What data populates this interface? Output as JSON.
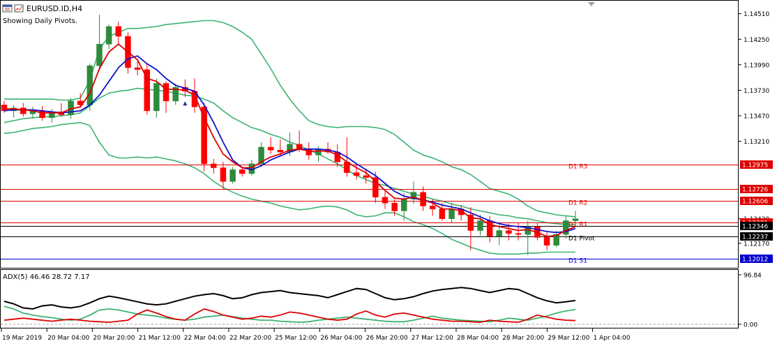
{
  "header": {
    "symbol": "EURUSD.ID,H4",
    "subtitle": "Showing Daily Pivots."
  },
  "colors": {
    "bullish": "#2e8b3c",
    "bearish": "#ff0000",
    "bollinger": "#3cb371",
    "ma_fast": "#dd0000",
    "ma_slow": "#1010cc",
    "pivot_red": "#dd0000",
    "pivot_black": "#000000",
    "pivot_blue": "#0000cc",
    "adx_main": "#000000",
    "adx_plus": "#3cb371",
    "adx_minus": "#dd0000",
    "grid_border": "#000000"
  },
  "chart_data": [
    {
      "type": "candlestick",
      "title": "EURUSD.ID,H4",
      "ylim": [
        1.1192,
        1.1465
      ],
      "price_ticks": [
        "1.14510",
        "1.14250",
        "1.13990",
        "1.13730",
        "1.13470",
        "1.13210",
        "1.12420",
        "1.12170"
      ],
      "x_ticks": [
        "19 Mar 2019",
        "20 Mar 04:00",
        "20 Mar 20:00",
        "21 Mar 12:00",
        "22 Mar 04:00",
        "22 Mar 20:00",
        "25 Mar 12:00",
        "26 Mar 04:00",
        "26 Mar 20:00",
        "27 Mar 12:00",
        "28 Mar 04:00",
        "28 Mar 20:00",
        "29 Mar 12:00",
        "1 Apr 04:00"
      ],
      "candles": [
        [
          1.1358,
          1.1362,
          1.135,
          1.1352
        ],
        [
          1.1352,
          1.1358,
          1.1345,
          1.1355
        ],
        [
          1.1355,
          1.136,
          1.1346,
          1.1349
        ],
        [
          1.1349,
          1.1356,
          1.1344,
          1.1352
        ],
        [
          1.1352,
          1.1357,
          1.1342,
          1.1345
        ],
        [
          1.1345,
          1.1354,
          1.134,
          1.1351
        ],
        [
          1.1351,
          1.136,
          1.1346,
          1.1348
        ],
        [
          1.1348,
          1.1365,
          1.1344,
          1.1362
        ],
        [
          1.1362,
          1.137,
          1.1355,
          1.1358
        ],
        [
          1.1358,
          1.14,
          1.1352,
          1.1398
        ],
        [
          1.1398,
          1.145,
          1.1393,
          1.142
        ],
        [
          1.142,
          1.144,
          1.1415,
          1.1438
        ],
        [
          1.1438,
          1.1443,
          1.142,
          1.1428
        ],
        [
          1.1428,
          1.1432,
          1.139,
          1.1396
        ],
        [
          1.1396,
          1.1405,
          1.1388,
          1.1394
        ],
        [
          1.1394,
          1.14,
          1.1348,
          1.1352
        ],
        [
          1.1352,
          1.1385,
          1.1345,
          1.138
        ],
        [
          1.138,
          1.1382,
          1.135,
          1.1362
        ],
        [
          1.1362,
          1.138,
          1.1358,
          1.1376
        ],
        [
          1.1376,
          1.1384,
          1.1366,
          1.1372
        ],
        [
          1.1372,
          1.1385,
          1.135,
          1.1356
        ],
        [
          1.1356,
          1.136,
          1.129,
          1.1298
        ],
        [
          1.1298,
          1.1303,
          1.1288,
          1.1294
        ],
        [
          1.1294,
          1.13,
          1.1272,
          1.128
        ],
        [
          1.128,
          1.1295,
          1.1278,
          1.1292
        ],
        [
          1.1292,
          1.1295,
          1.1285,
          1.1288
        ],
        [
          1.1288,
          1.1302,
          1.1286,
          1.1298
        ],
        [
          1.1298,
          1.132,
          1.1295,
          1.1315
        ],
        [
          1.1315,
          1.1325,
          1.1308,
          1.1312
        ],
        [
          1.1312,
          1.1323,
          1.1305,
          1.131
        ],
        [
          1.131,
          1.133,
          1.1306,
          1.1318
        ],
        [
          1.1318,
          1.1332,
          1.131,
          1.1313
        ],
        [
          1.1313,
          1.132,
          1.1302,
          1.1307
        ],
        [
          1.1307,
          1.1316,
          1.13,
          1.1313
        ],
        [
          1.1313,
          1.132,
          1.1308,
          1.131
        ],
        [
          1.131,
          1.1318,
          1.1295,
          1.13
        ],
        [
          1.13,
          1.1325,
          1.1285,
          1.1289
        ],
        [
          1.1289,
          1.1298,
          1.1282,
          1.1286
        ],
        [
          1.1286,
          1.1293,
          1.1278,
          1.1284
        ],
        [
          1.1284,
          1.129,
          1.1258,
          1.1264
        ],
        [
          1.1264,
          1.127,
          1.1252,
          1.1258
        ],
        [
          1.1258,
          1.1262,
          1.1245,
          1.125
        ],
        [
          1.125,
          1.1268,
          1.124,
          1.1262
        ],
        [
          1.1262,
          1.128,
          1.1257,
          1.1269
        ],
        [
          1.1269,
          1.1275,
          1.125,
          1.1255
        ],
        [
          1.1255,
          1.1262,
          1.1245,
          1.1252
        ],
        [
          1.1252,
          1.1258,
          1.124,
          1.1242
        ],
        [
          1.1242,
          1.1258,
          1.1238,
          1.1252
        ],
        [
          1.1252,
          1.1256,
          1.124,
          1.1246
        ],
        [
          1.1246,
          1.1254,
          1.121,
          1.123
        ],
        [
          1.123,
          1.1246,
          1.1225,
          1.124
        ],
        [
          1.124,
          1.1245,
          1.1218,
          1.1224
        ],
        [
          1.1224,
          1.1236,
          1.1215,
          1.123
        ],
        [
          1.123,
          1.1237,
          1.122,
          1.1227
        ],
        [
          1.1227,
          1.1238,
          1.122,
          1.1226
        ],
        [
          1.1226,
          1.124,
          1.1205,
          1.1234
        ],
        [
          1.1234,
          1.1238,
          1.122,
          1.1223
        ],
        [
          1.1223,
          1.1228,
          1.121,
          1.1215
        ],
        [
          1.1215,
          1.123,
          1.1213,
          1.1226
        ],
        [
          1.1226,
          1.1245,
          1.1222,
          1.124
        ],
        [
          1.124,
          1.125,
          1.1236,
          1.1242
        ]
      ],
      "ma_fast": [
        1.1354,
        1.1354,
        1.1353,
        1.1352,
        1.135,
        1.135,
        1.135,
        1.1354,
        1.1356,
        1.137,
        1.1395,
        1.1412,
        1.142,
        1.1412,
        1.1404,
        1.1385,
        1.1382,
        1.1374,
        1.1374,
        1.1373,
        1.1368,
        1.1345,
        1.1325,
        1.1308,
        1.13,
        1.1294,
        1.1294,
        1.13,
        1.1305,
        1.1308,
        1.1312,
        1.1313,
        1.1311,
        1.1311,
        1.1311,
        1.1307,
        1.13,
        1.1294,
        1.1289,
        1.128,
        1.1271,
        1.1263,
        1.1262,
        1.1264,
        1.1261,
        1.1258,
        1.1252,
        1.1252,
        1.125,
        1.1243,
        1.1242,
        1.1236,
        1.1234,
        1.1232,
        1.123,
        1.1231,
        1.1228,
        1.1224,
        1.1225,
        1.123,
        1.1234
      ],
      "ma_slow": [
        1.1352,
        1.1353,
        1.1353,
        1.1353,
        1.1352,
        1.1351,
        1.135,
        1.1351,
        1.1352,
        1.1358,
        1.1368,
        1.1382,
        1.1396,
        1.1405,
        1.1408,
        1.14,
        1.1394,
        1.1385,
        1.1378,
        1.1375,
        1.1372,
        1.1358,
        1.134,
        1.132,
        1.1302,
        1.1294,
        1.1292,
        1.1296,
        1.1302,
        1.1306,
        1.131,
        1.1313,
        1.1313,
        1.1313,
        1.1312,
        1.131,
        1.1305,
        1.1298,
        1.1292,
        1.1286,
        1.1278,
        1.127,
        1.1265,
        1.1263,
        1.1261,
        1.1259,
        1.1256,
        1.1254,
        1.1252,
        1.1248,
        1.1244,
        1.124,
        1.1237,
        1.1235,
        1.1234,
        1.1233,
        1.1231,
        1.1229,
        1.1228,
        1.1229,
        1.1232
      ],
      "bb_upper": [
        1.1364,
        1.1364,
        1.1364,
        1.1364,
        1.1364,
        1.1364,
        1.1363,
        1.1363,
        1.1365,
        1.1383,
        1.1415,
        1.1428,
        1.1432,
        1.1436,
        1.1436,
        1.1437,
        1.1438,
        1.144,
        1.1441,
        1.1442,
        1.1443,
        1.1444,
        1.1444,
        1.1442,
        1.1438,
        1.1432,
        1.1425,
        1.141,
        1.1395,
        1.1378,
        1.1364,
        1.1352,
        1.1342,
        1.1338,
        1.1336,
        1.1335,
        1.1336,
        1.1336,
        1.1336,
        1.1335,
        1.1333,
        1.1328,
        1.132,
        1.1312,
        1.1307,
        1.1304,
        1.13,
        1.1295,
        1.1292,
        1.1287,
        1.128,
        1.1273,
        1.127,
        1.1267,
        1.1262,
        1.1255,
        1.125,
        1.1248,
        1.1246,
        1.1245,
        1.1244
      ],
      "bb_mid": [
        1.134,
        1.1342,
        1.1344,
        1.1345,
        1.1346,
        1.1346,
        1.1347,
        1.1348,
        1.135,
        1.1357,
        1.1365,
        1.137,
        1.1372,
        1.1373,
        1.1375,
        1.1374,
        1.1373,
        1.1372,
        1.137,
        1.1368,
        1.1367,
        1.1364,
        1.136,
        1.1352,
        1.1345,
        1.134,
        1.1335,
        1.1332,
        1.1328,
        1.1325,
        1.132,
        1.1317,
        1.1312,
        1.1308,
        1.1303,
        1.1298,
        1.1292,
        1.1286,
        1.1282,
        1.1278,
        1.1276,
        1.1273,
        1.127,
        1.1267,
        1.1265,
        1.1262,
        1.126,
        1.1257,
        1.1255,
        1.1252,
        1.125,
        1.1248,
        1.1246,
        1.1245,
        1.1243,
        1.1242,
        1.124,
        1.1238,
        1.1237,
        1.1236,
        1.1236
      ],
      "bb_lower": [
        1.1329,
        1.133,
        1.1332,
        1.1334,
        1.1335,
        1.1336,
        1.1338,
        1.1339,
        1.134,
        1.1337,
        1.132,
        1.1307,
        1.1304,
        1.1304,
        1.1305,
        1.1304,
        1.1305,
        1.1303,
        1.1301,
        1.1298,
        1.1294,
        1.1288,
        1.128,
        1.1274,
        1.1269,
        1.1265,
        1.1262,
        1.126,
        1.1258,
        1.1255,
        1.1253,
        1.1251,
        1.1252,
        1.1254,
        1.1255,
        1.1254,
        1.1251,
        1.1246,
        1.1244,
        1.1245,
        1.1248,
        1.1248,
        1.1244,
        1.1239,
        1.1236,
        1.1232,
        1.1227,
        1.1221,
        1.1217,
        1.1213,
        1.121,
        1.1207,
        1.1206,
        1.1206,
        1.1206,
        1.1207,
        1.1207,
        1.1208,
        1.1208,
        1.1208,
        1.1208
      ],
      "arrow_marker_index": 19,
      "levels": [
        {
          "name": "D1 R3",
          "price": 1.12975,
          "label": "1.12975",
          "color": "#dd0000",
          "show_name": true
        },
        {
          "name": "",
          "price": 1.12726,
          "label": "1.12726",
          "color": "#dd0000",
          "show_name": false
        },
        {
          "name": "D1 R2",
          "price": 1.12606,
          "label": "1.12606",
          "color": "#dd0000",
          "show_name": true
        },
        {
          "name": "D1 R1",
          "price": 1.12381,
          "label": "1.12381",
          "color": "#dd0000",
          "show_name": true
        },
        {
          "name": "",
          "price": 1.12346,
          "label": "1.12346",
          "color": "#000000",
          "show_name": false
        },
        {
          "name": "D1 Pivot",
          "price": 1.12237,
          "label": "1.12237",
          "color": "#000000",
          "show_name": true
        },
        {
          "name": "D1 S1",
          "price": 1.12012,
          "label": "1.12012",
          "color": "#0000cc",
          "show_name": true
        }
      ]
    },
    {
      "type": "line",
      "title": "ADX(5) 46.46 28.72 7.17",
      "ylim": [
        0,
        96.84
      ],
      "y_ticks": [
        "96.84",
        "0.00"
      ],
      "series": [
        {
          "values": [
            45,
            40,
            32,
            30,
            36,
            38,
            34,
            32,
            35,
            42,
            50,
            55,
            52,
            48,
            44,
            40,
            38,
            40,
            45,
            50,
            55,
            58,
            60,
            56,
            50,
            52,
            58,
            62,
            64,
            66,
            62,
            60,
            58,
            56,
            52,
            58,
            64,
            70,
            68,
            60,
            52,
            48,
            50,
            54,
            60,
            65,
            68,
            70,
            72,
            70,
            66,
            62,
            66,
            70,
            68,
            60,
            52,
            46,
            42,
            44,
            46.46
          ]
        },
        {
          "values": [
            35,
            30,
            22,
            18,
            15,
            13,
            10,
            8,
            10,
            18,
            28,
            30,
            28,
            24,
            20,
            18,
            16,
            12,
            10,
            8,
            10,
            14,
            16,
            18,
            15,
            12,
            10,
            8,
            8,
            6,
            5,
            4,
            5,
            8,
            10,
            12,
            14,
            12,
            10,
            8,
            6,
            5,
            5,
            8,
            12,
            16,
            12,
            10,
            8,
            7,
            6,
            5,
            8,
            12,
            10,
            8,
            12,
            16,
            22,
            26,
            28.72
          ]
        },
        {
          "values": [
            8,
            10,
            12,
            10,
            8,
            6,
            8,
            10,
            8,
            6,
            5,
            4,
            6,
            8,
            20,
            28,
            22,
            15,
            10,
            8,
            20,
            30,
            25,
            18,
            14,
            10,
            12,
            16,
            14,
            18,
            24,
            22,
            18,
            14,
            10,
            8,
            10,
            20,
            26,
            18,
            14,
            20,
            22,
            18,
            14,
            10,
            8,
            6,
            6,
            5,
            4,
            8,
            6,
            5,
            4,
            10,
            18,
            14,
            10,
            8,
            7.17
          ]
        }
      ]
    }
  ]
}
